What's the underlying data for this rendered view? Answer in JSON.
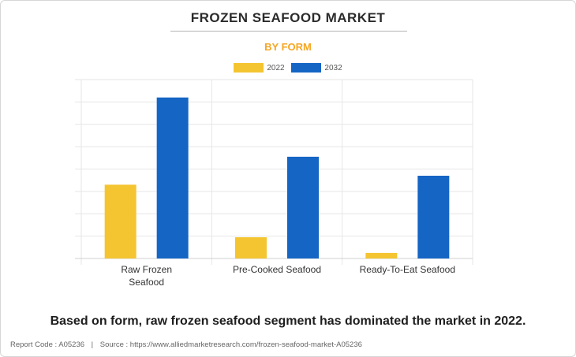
{
  "header": {
    "title": "FROZEN SEAFOOD MARKET",
    "subtitle": "BY FORM"
  },
  "chart_data": {
    "type": "bar",
    "categories": [
      "Raw Frozen\nSeafood",
      "Pre-Cooked Seafood",
      "Ready-To-Eat Seafood"
    ],
    "series": [
      {
        "name": "2022",
        "color": "#f4c531",
        "values": [
          33,
          9.5,
          2.5
        ]
      },
      {
        "name": "2032",
        "color": "#1565c4",
        "values": [
          72,
          45.5,
          37
        ]
      }
    ],
    "ylim": [
      0,
      80
    ],
    "grid": true,
    "legend_position": "top-center"
  },
  "caption": "Based on form, raw frozen seafood segment has dominated the market in 2022.",
  "footer": {
    "report_code": "Report Code : A05236",
    "separator": "|",
    "source": "Source : https://www.alliedmarketresearch.com/frozen-seafood-market-A05236"
  }
}
